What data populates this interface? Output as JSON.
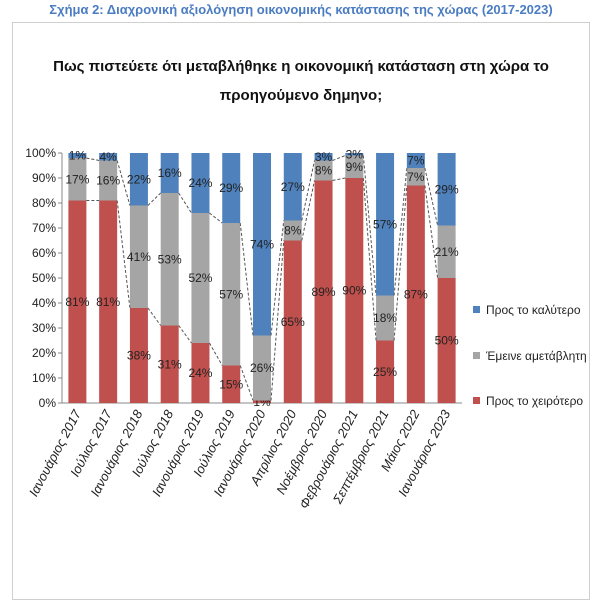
{
  "caption": "Σχήμα 2: Διαχρονική αξιολόγηση οικονομικής κατάστασης της χώρας (2017-2023)",
  "chart_data": {
    "type": "bar",
    "stacked": true,
    "title_line1": "Πως πιστεύετε ότι μεταβλήθηκε η οικονομική κατάσταση στη χώρα το",
    "title_line2": "προηγούμενο δημηνο;",
    "categories": [
      "Ιανουάριος 2017",
      "Ιούλιος 2017",
      "Ιανουάριος 2018",
      "Ιούλιος 2018",
      "Ιανουάριος 2019",
      "Ιούλιος 2019",
      "Ιανουάριος 2020",
      "Απρίλιος 2020",
      "Νοέμβριος 2020",
      "Φεβρουάριος 2021",
      "Σεπτέμβριος 2021",
      "Μάιος 2022",
      "Ιανουάριος 2023"
    ],
    "series": [
      {
        "name": "Προς το χειρότερο",
        "color": "#c0504d",
        "values": [
          81,
          81,
          38,
          31,
          24,
          15,
          1,
          65,
          89,
          90,
          25,
          87,
          50
        ]
      },
      {
        "name": "Έμεινε αμετάβλητη",
        "color": "#a5a5a5",
        "values": [
          17,
          16,
          41,
          53,
          52,
          57,
          26,
          8,
          8,
          9,
          18,
          7,
          21
        ]
      },
      {
        "name": "Προς το καλύτερο",
        "color": "#4f81bd",
        "values": [
          1,
          4,
          22,
          16,
          24,
          29,
          74,
          27,
          3,
          3,
          57,
          7,
          29
        ]
      }
    ],
    "legend": [
      "Προς το καλύτερο",
      "Έμεινε αμετάβλητη",
      "Προς το χειρότερο"
    ],
    "y_ticks": [
      "0%",
      "10%",
      "20%",
      "30%",
      "40%",
      "50%",
      "60%",
      "70%",
      "80%",
      "90%",
      "100%"
    ],
    "ylim": [
      0,
      100
    ],
    "percent_suffix": "%"
  }
}
